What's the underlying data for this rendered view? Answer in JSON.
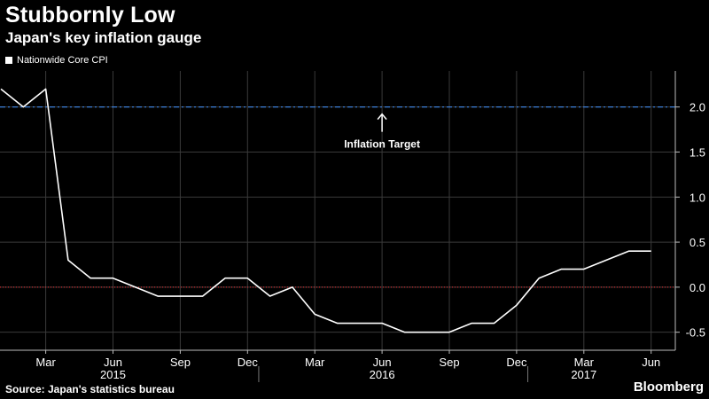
{
  "header": {
    "title": "Stubbornly Low",
    "subtitle": "Japan's key inflation gauge"
  },
  "footer": {
    "source": "Source: Japan's statistics bureau",
    "brand": "Bloomberg"
  },
  "colors": {
    "background": "#000000",
    "series": "#ffffff",
    "target_line": "#3d7fd9",
    "zero_line": "#d0282d",
    "grid": "#3a3a3a"
  },
  "chart_data": {
    "type": "line",
    "title": "Stubbornly Low",
    "subtitle": "Japan's key inflation gauge",
    "xlabel": "",
    "ylabel": "",
    "ylim": [
      -0.7,
      2.4
    ],
    "yticks": [
      2.0,
      1.5,
      1.0,
      0.5,
      0.0,
      -0.5
    ],
    "ytick_labels": [
      "2.0",
      "1.5",
      "1.0",
      "0.5",
      "0.0",
      "-0.5"
    ],
    "y_axis_position": "right",
    "grid": true,
    "legend_position": "top-left",
    "x_ticks": [
      {
        "date": "2015-03",
        "label": "Mar"
      },
      {
        "date": "2015-06",
        "label": "Jun"
      },
      {
        "date": "2015-09",
        "label": "Sep"
      },
      {
        "date": "2015-12",
        "label": "Dec"
      },
      {
        "date": "2016-03",
        "label": "Mar"
      },
      {
        "date": "2016-06",
        "label": "Jun"
      },
      {
        "date": "2016-09",
        "label": "Sep"
      },
      {
        "date": "2016-12",
        "label": "Dec"
      },
      {
        "date": "2017-03",
        "label": "Mar"
      },
      {
        "date": "2017-06",
        "label": "Jun"
      }
    ],
    "year_labels": [
      {
        "date": "2015-06",
        "label": "2015"
      },
      {
        "date": "2016-06",
        "label": "2016"
      },
      {
        "date": "2017-03",
        "label": "2017"
      }
    ],
    "series": [
      {
        "name": "Nationwide Core CPI",
        "points": [
          {
            "x": "2015-01",
            "y": 2.2
          },
          {
            "x": "2015-02",
            "y": 2.0
          },
          {
            "x": "2015-03",
            "y": 2.2
          },
          {
            "x": "2015-04",
            "y": 0.3
          },
          {
            "x": "2015-05",
            "y": 0.1
          },
          {
            "x": "2015-06",
            "y": 0.1
          },
          {
            "x": "2015-07",
            "y": 0.0
          },
          {
            "x": "2015-08",
            "y": -0.1
          },
          {
            "x": "2015-09",
            "y": -0.1
          },
          {
            "x": "2015-10",
            "y": -0.1
          },
          {
            "x": "2015-11",
            "y": 0.1
          },
          {
            "x": "2015-12",
            "y": 0.1
          },
          {
            "x": "2016-01",
            "y": -0.1
          },
          {
            "x": "2016-02",
            "y": 0.0
          },
          {
            "x": "2016-03",
            "y": -0.3
          },
          {
            "x": "2016-04",
            "y": -0.4
          },
          {
            "x": "2016-05",
            "y": -0.4
          },
          {
            "x": "2016-06",
            "y": -0.4
          },
          {
            "x": "2016-07",
            "y": -0.5
          },
          {
            "x": "2016-08",
            "y": -0.5
          },
          {
            "x": "2016-09",
            "y": -0.5
          },
          {
            "x": "2016-10",
            "y": -0.4
          },
          {
            "x": "2016-11",
            "y": -0.4
          },
          {
            "x": "2016-12",
            "y": -0.2
          },
          {
            "x": "2017-01",
            "y": 0.1
          },
          {
            "x": "2017-02",
            "y": 0.2
          },
          {
            "x": "2017-03",
            "y": 0.2
          },
          {
            "x": "2017-04",
            "y": 0.3
          },
          {
            "x": "2017-05",
            "y": 0.4
          },
          {
            "x": "2017-06",
            "y": 0.4
          }
        ]
      }
    ],
    "reference_lines": [
      {
        "y": 2.0,
        "style": "dash-dot",
        "color": "#3d7fd9"
      },
      {
        "y": 0.0,
        "style": "dotted",
        "color": "#d0282d"
      }
    ],
    "annotations": [
      {
        "text": "Inflation Target",
        "x": "2016-06",
        "y": 2.0
      }
    ]
  }
}
